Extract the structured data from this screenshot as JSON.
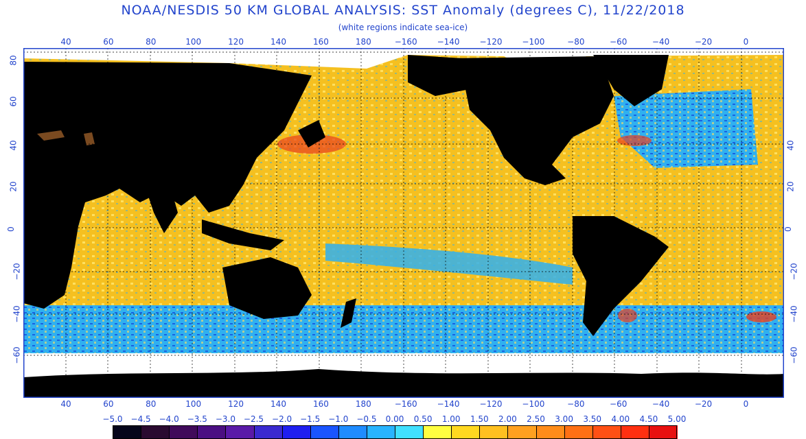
{
  "header": {
    "title": "NOAA/NESDIS 50 KM GLOBAL ANALYSIS: SST Anomaly (degrees C), 11/22/2018",
    "subtitle": "(white regions indicate sea-ice)"
  },
  "longitude_ticks": [
    "40",
    "60",
    "80",
    "100",
    "120",
    "140",
    "160",
    "180",
    "−160",
    "−140",
    "−120",
    "−100",
    "−80",
    "−60",
    "−40",
    "−20",
    "0"
  ],
  "latitude_ticks_left": [
    "80",
    "60",
    "40",
    "20",
    "0",
    "−20",
    "−40",
    "−60"
  ],
  "latitude_ticks_right": [
    "40",
    "20",
    "0",
    "−20",
    "−40",
    "−60"
  ],
  "colorbar": {
    "labels": [
      "−5.0",
      "−4.5",
      "−4.0",
      "−3.5",
      "−3.0",
      "−2.5",
      "−2.0",
      "−1.5",
      "−1.0",
      "−0.5",
      "0.00",
      "0.50",
      "1.00",
      "1.50",
      "2.00",
      "2.50",
      "3.00",
      "3.50",
      "4.00",
      "4.50",
      "5.00"
    ],
    "colors": [
      "#05051a",
      "#2a0a30",
      "#400a5a",
      "#4b0f82",
      "#5a1aa8",
      "#3a2ad0",
      "#1f1ff0",
      "#1a55ff",
      "#1f8cff",
      "#28b4ff",
      "#40e0ff",
      "#ffff40",
      "#ffd820",
      "#ffc020",
      "#ffa020",
      "#ff8c1a",
      "#ff7014",
      "#ff5014",
      "#ff3010",
      "#e81010"
    ]
  },
  "map": {
    "colors": {
      "land": "#000000",
      "ice": "#ffffff",
      "warm_anomaly": "#f5c020",
      "neutral": "#ffe060",
      "cool_anomaly": "#30b0f0",
      "strong_cool": "#1a60e0",
      "strong_warm": "#e84020",
      "desert_lake": "#7a4a20"
    }
  }
}
